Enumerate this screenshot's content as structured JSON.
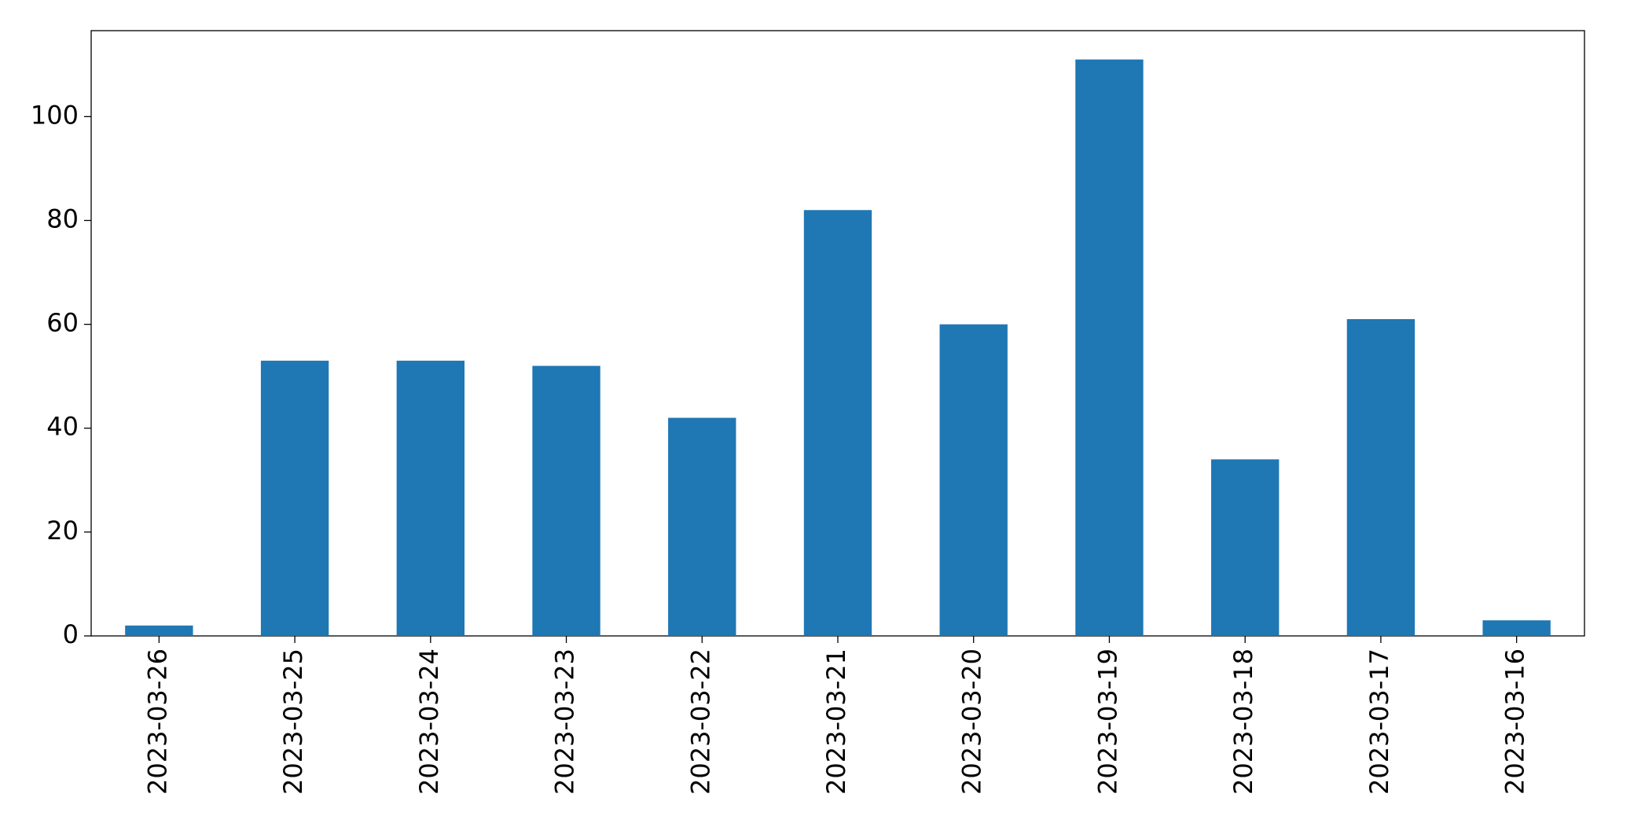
{
  "chart_data": {
    "type": "bar",
    "categories": [
      "2023-03-26",
      "2023-03-25",
      "2023-03-24",
      "2023-03-23",
      "2023-03-22",
      "2023-03-21",
      "2023-03-20",
      "2023-03-19",
      "2023-03-18",
      "2023-03-17",
      "2023-03-16"
    ],
    "values": [
      2,
      53,
      53,
      52,
      42,
      82,
      60,
      111,
      34,
      61,
      3
    ],
    "color": "#1f77b4",
    "ylim": [
      0,
      116.55
    ],
    "yticks": [
      0,
      20,
      40,
      60,
      80,
      100
    ],
    "grid": false
  }
}
